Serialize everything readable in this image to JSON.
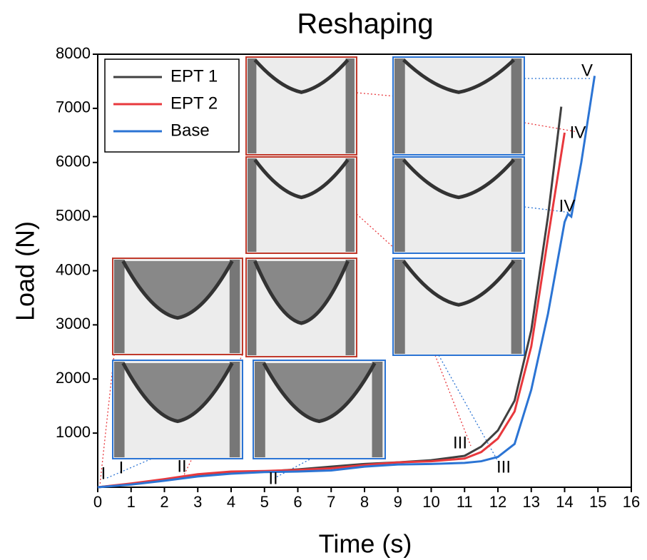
{
  "chart_data": {
    "type": "line",
    "title": "Reshaping",
    "x_label": "Time (s)",
    "y_label": "Load (N)",
    "xlim": [
      0,
      16
    ],
    "xticks": [
      0,
      1,
      2,
      3,
      4,
      5,
      6,
      7,
      8,
      9,
      10,
      11,
      12,
      13,
      14,
      15,
      16
    ],
    "ylim": [
      0,
      8000
    ],
    "yticks": [
      1000,
      2000,
      3000,
      4000,
      5000,
      6000,
      7000,
      8000
    ],
    "legend": "top-left",
    "series": [
      {
        "name": "EPT 1",
        "color": "#404040",
        "x": [
          0,
          1,
          2,
          3,
          4,
          5,
          6,
          7,
          8,
          9,
          10,
          11,
          11.5,
          12,
          12.5,
          13,
          13.5,
          13.9
        ],
        "values": [
          0,
          60,
          130,
          210,
          270,
          290,
          330,
          380,
          430,
          460,
          500,
          580,
          750,
          1050,
          1600,
          2900,
          5000,
          7030
        ]
      },
      {
        "name": "EPT 2",
        "color": "#e8383d",
        "x": [
          0,
          1,
          2,
          3,
          4,
          5,
          6,
          7,
          8,
          9,
          10,
          11,
          11.5,
          12,
          12.5,
          13,
          13.5,
          14
        ],
        "values": [
          0,
          70,
          150,
          240,
          290,
          300,
          320,
          350,
          410,
          460,
          480,
          530,
          650,
          900,
          1400,
          2600,
          4600,
          6550
        ]
      },
      {
        "name": "Base",
        "color": "#2b74d4",
        "x": [
          0,
          1,
          2,
          3,
          4,
          5,
          6,
          7,
          8,
          9,
          10,
          11,
          11.5,
          12,
          12.5,
          13,
          13.5,
          14,
          14.1,
          14.2,
          14.5,
          14.9
        ],
        "values": [
          0,
          50,
          120,
          200,
          250,
          280,
          290,
          310,
          380,
          420,
          430,
          450,
          480,
          560,
          800,
          1800,
          3200,
          4900,
          5050,
          5000,
          6000,
          7600
        ]
      }
    ],
    "annotations": [
      {
        "text": "I",
        "color": "#e8383d"
      },
      {
        "text": "I",
        "color": "#2b74d4"
      },
      {
        "text": "II",
        "color": "#e8383d"
      },
      {
        "text": "II",
        "color": "#2b74d4"
      },
      {
        "text": "III",
        "color": "#e8383d"
      },
      {
        "text": "III",
        "color": "#2b74d4"
      },
      {
        "text": "IV",
        "color": "#e8383d"
      },
      {
        "text": "IV",
        "color": "#2b74d4"
      },
      {
        "text": "V",
        "color": "#2b74d4"
      }
    ]
  }
}
